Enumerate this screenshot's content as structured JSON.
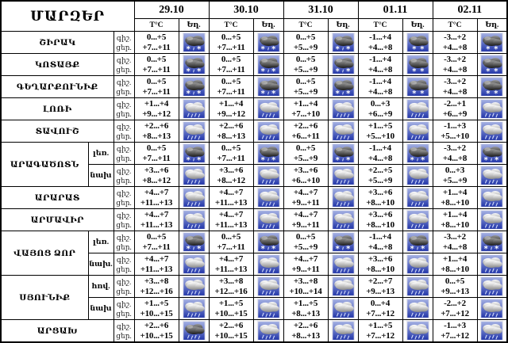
{
  "title": "ՄԱՐԶԵՐ",
  "columns": {
    "temp_header": "T°C",
    "weather_header": "Եղ."
  },
  "dates": [
    "29.10",
    "30.10",
    "31.10",
    "01.11",
    "02.11"
  ],
  "icon_names": {
    "sleet": "snow-rain-cloud-icon",
    "snow": "snow-cloud-icon",
    "rain": "rain-cloud-icon",
    "rain_dark": "dark-rain-cloud-icon"
  },
  "colors": {
    "border": "#000000",
    "background": "#ffffff",
    "icon_sky_top": "#a8b4e4",
    "icon_sky_bottom": "#2034a8",
    "dark_cloud": "#1c1c1c",
    "light_cloud": "#8a8a8a"
  },
  "regions": [
    {
      "name": "ՇԻՐԱԿ",
      "subrows": [
        {
          "area": "",
          "night_label": "գիշ.",
          "day_label": "ցեր.",
          "data": [
            {
              "n": "0...+5",
              "d": "+7...+11",
              "w": "sleet"
            },
            {
              "n": "0...+5",
              "d": "+7...+11",
              "w": "sleet"
            },
            {
              "n": "0...+5",
              "d": "+5...+9",
              "w": "sleet"
            },
            {
              "n": "-1...+4",
              "d": "+4...+8",
              "w": "snow"
            },
            {
              "n": "-3...+2",
              "d": "+4...+8",
              "w": "snow"
            }
          ]
        }
      ]
    },
    {
      "name": "ԿՈՏԱՅՔ",
      "subrows": [
        {
          "area": "",
          "night_label": "գիշ.",
          "day_label": "ցեր.",
          "data": [
            {
              "n": "0...+5",
              "d": "+7...+11",
              "w": "sleet"
            },
            {
              "n": "0...+5",
              "d": "+7...+11",
              "w": "sleet"
            },
            {
              "n": "0...+5",
              "d": "+5...+9",
              "w": "sleet"
            },
            {
              "n": "-1...+4",
              "d": "+4...+8",
              "w": "snow"
            },
            {
              "n": "-3...+2",
              "d": "+4...+8",
              "w": "snow"
            }
          ]
        }
      ]
    },
    {
      "name": "ԳԵՂԱՐՔՈՒՆԻՔ",
      "subrows": [
        {
          "area": "",
          "night_label": "գիշ.",
          "day_label": "ցեր.",
          "data": [
            {
              "n": "0...+5",
              "d": "+7...+11",
              "w": "sleet"
            },
            {
              "n": "0...+5",
              "d": "+7...+11",
              "w": "sleet"
            },
            {
              "n": "0...+5",
              "d": "+5...+9",
              "w": "sleet"
            },
            {
              "n": "-1...+4",
              "d": "+4...+8",
              "w": "snow"
            },
            {
              "n": "-3...+2",
              "d": "+4...+8",
              "w": "snow"
            }
          ]
        }
      ]
    },
    {
      "name": "ԼՈՌԻ",
      "subrows": [
        {
          "area": "",
          "night_label": "գիշ.",
          "day_label": "ցեր.",
          "data": [
            {
              "n": "+1...+4",
              "d": "+9...+12",
              "w": "rain"
            },
            {
              "n": "+1...+4",
              "d": "+9...+12",
              "w": "rain"
            },
            {
              "n": "+1...+4",
              "d": "+7...+10",
              "w": "rain"
            },
            {
              "n": "0...+3",
              "d": "+6...+9",
              "w": "rain"
            },
            {
              "n": "-2...+1",
              "d": "+6...+9",
              "w": "rain"
            }
          ]
        }
      ]
    },
    {
      "name": "ՏԱՎՈՒՇ",
      "subrows": [
        {
          "area": "",
          "night_label": "գիշ.",
          "day_label": "ցեր.",
          "data": [
            {
              "n": "+2...+6",
              "d": "+8...+13",
              "w": "rain"
            },
            {
              "n": "+2...+6",
              "d": "+8...+13",
              "w": "rain"
            },
            {
              "n": "+2...+6",
              "d": "+6...+11",
              "w": "rain"
            },
            {
              "n": "+1...+5",
              "d": "+5...+10",
              "w": "rain"
            },
            {
              "n": "-1...+3",
              "d": "+5...+10",
              "w": "rain"
            }
          ]
        }
      ]
    },
    {
      "name": "ԱՐԱԳԱԾՈՏՆ",
      "subrows": [
        {
          "area": "լեռ.",
          "night_label": "գիշ.",
          "day_label": "ցեր.",
          "data": [
            {
              "n": "0...+5",
              "d": "+7...+11",
              "w": "sleet"
            },
            {
              "n": "0...+5",
              "d": "+7...+11",
              "w": "sleet"
            },
            {
              "n": "0...+5",
              "d": "+5...+9",
              "w": "sleet"
            },
            {
              "n": "-1...+4",
              "d": "+4...+8",
              "w": "sleet"
            },
            {
              "n": "-3...+2",
              "d": "+4...+8",
              "w": "sleet"
            }
          ]
        },
        {
          "area": "նախ",
          "night_label": "գիշ.",
          "day_label": "ցեր.",
          "data": [
            {
              "n": "+3...+6",
              "d": "+8...+12",
              "w": "rain"
            },
            {
              "n": "+3...+6",
              "d": "+8...+12",
              "w": "rain"
            },
            {
              "n": "+3...+6",
              "d": "+6...+10",
              "w": "rain"
            },
            {
              "n": "+2...+5",
              "d": "+5...+9",
              "w": "rain"
            },
            {
              "n": "0...+3",
              "d": "+5...+9",
              "w": "rain"
            }
          ]
        }
      ]
    },
    {
      "name": "ԱՐԱՐԱՏ",
      "subrows": [
        {
          "area": "",
          "night_label": "գիշ.",
          "day_label": "ցեր.",
          "data": [
            {
              "n": "+4...+7",
              "d": "+11...+13",
              "w": "rain"
            },
            {
              "n": "+4...+7",
              "d": "+11...+13",
              "w": "rain"
            },
            {
              "n": "+4...+7",
              "d": "+9...+11",
              "w": "rain"
            },
            {
              "n": "+3...+6",
              "d": "+8...+10",
              "w": "rain"
            },
            {
              "n": "+1...+4",
              "d": "+8...+10",
              "w": "rain"
            }
          ]
        }
      ]
    },
    {
      "name": "ԱՐՄԱՎԻՐ",
      "subrows": [
        {
          "area": "",
          "night_label": "գիշ.",
          "day_label": "ցեր.",
          "data": [
            {
              "n": "+4...+7",
              "d": "+11...+13",
              "w": "rain"
            },
            {
              "n": "+4...+7",
              "d": "+11...+13",
              "w": "rain"
            },
            {
              "n": "+4...+7",
              "d": "+9...+11",
              "w": "rain"
            },
            {
              "n": "+3...+6",
              "d": "+8...+10",
              "w": "rain"
            },
            {
              "n": "+1...+4",
              "d": "+8...+10",
              "w": "rain"
            }
          ]
        }
      ]
    },
    {
      "name": "ՎԱՅՈՑ ՁՈՐ",
      "subrows": [
        {
          "area": "լեռ.",
          "night_label": "գիշ.",
          "day_label": "ցեր.",
          "data": [
            {
              "n": "0...+5",
              "d": "+7...+11",
              "w": "sleet"
            },
            {
              "n": "0...+5",
              "d": "+7...+11",
              "w": "sleet"
            },
            {
              "n": "0...+5",
              "d": "+5...+9",
              "w": "sleet"
            },
            {
              "n": "-1...+4",
              "d": "+4...+8",
              "w": "sleet"
            },
            {
              "n": "-3...+2",
              "d": "+4...+8",
              "w": "sleet"
            }
          ]
        },
        {
          "area": "նախ.",
          "night_label": "գիշ.",
          "day_label": "ցեր.",
          "data": [
            {
              "n": "+4...+7",
              "d": "+11...+13",
              "w": "rain"
            },
            {
              "n": "+4...+7",
              "d": "+11...+13",
              "w": "rain"
            },
            {
              "n": "+4...+7",
              "d": "+9...+11",
              "w": "rain"
            },
            {
              "n": "+3...+6",
              "d": "+8...+10",
              "w": "rain"
            },
            {
              "n": "+1...+4",
              "d": "+8...+10",
              "w": "rain"
            }
          ]
        }
      ]
    },
    {
      "name": "ՍՅՈՒՆԻՔ",
      "subrows": [
        {
          "area": "հով.",
          "night_label": "գիշ.",
          "day_label": "ցեր.",
          "data": [
            {
              "n": "+3...+8",
              "d": "+12...+16",
              "w": "rain"
            },
            {
              "n": "+3...+8",
              "d": "+12...+16",
              "w": "rain"
            },
            {
              "n": "+3...+8",
              "d": "+10...+14",
              "w": "rain"
            },
            {
              "n": "+2...+7",
              "d": "+9...+13",
              "w": "rain"
            },
            {
              "n": "0...+5",
              "d": "+9...+13",
              "w": "rain"
            }
          ]
        },
        {
          "area": "նախ",
          "night_label": "գիշ.",
          "day_label": "ցեր.",
          "data": [
            {
              "n": "+1...+5",
              "d": "+10...+15",
              "w": "rain"
            },
            {
              "n": "+1...+5",
              "d": "+10...+15",
              "w": "rain"
            },
            {
              "n": "+1...+5",
              "d": "+8...+13",
              "w": "rain"
            },
            {
              "n": "0...+4",
              "d": "+7...+12",
              "w": "rain"
            },
            {
              "n": "-2...+2",
              "d": "+7...+12",
              "w": "rain"
            }
          ]
        }
      ]
    },
    {
      "name": "ԱՐՑԱԽ",
      "subrows": [
        {
          "area": "",
          "night_label": "գիշ.",
          "day_label": "ցեր.",
          "data": [
            {
              "n": "+2...+6",
              "d": "+10...+15",
              "w": "rain_dark"
            },
            {
              "n": "+2...+6",
              "d": "+10...+15",
              "w": "rain"
            },
            {
              "n": "+2...+6",
              "d": "+8...+13",
              "w": "rain"
            },
            {
              "n": "+1...+5",
              "d": "+7...+12",
              "w": "rain"
            },
            {
              "n": "-1...+3",
              "d": "+7...+12",
              "w": "rain"
            }
          ]
        }
      ]
    }
  ]
}
